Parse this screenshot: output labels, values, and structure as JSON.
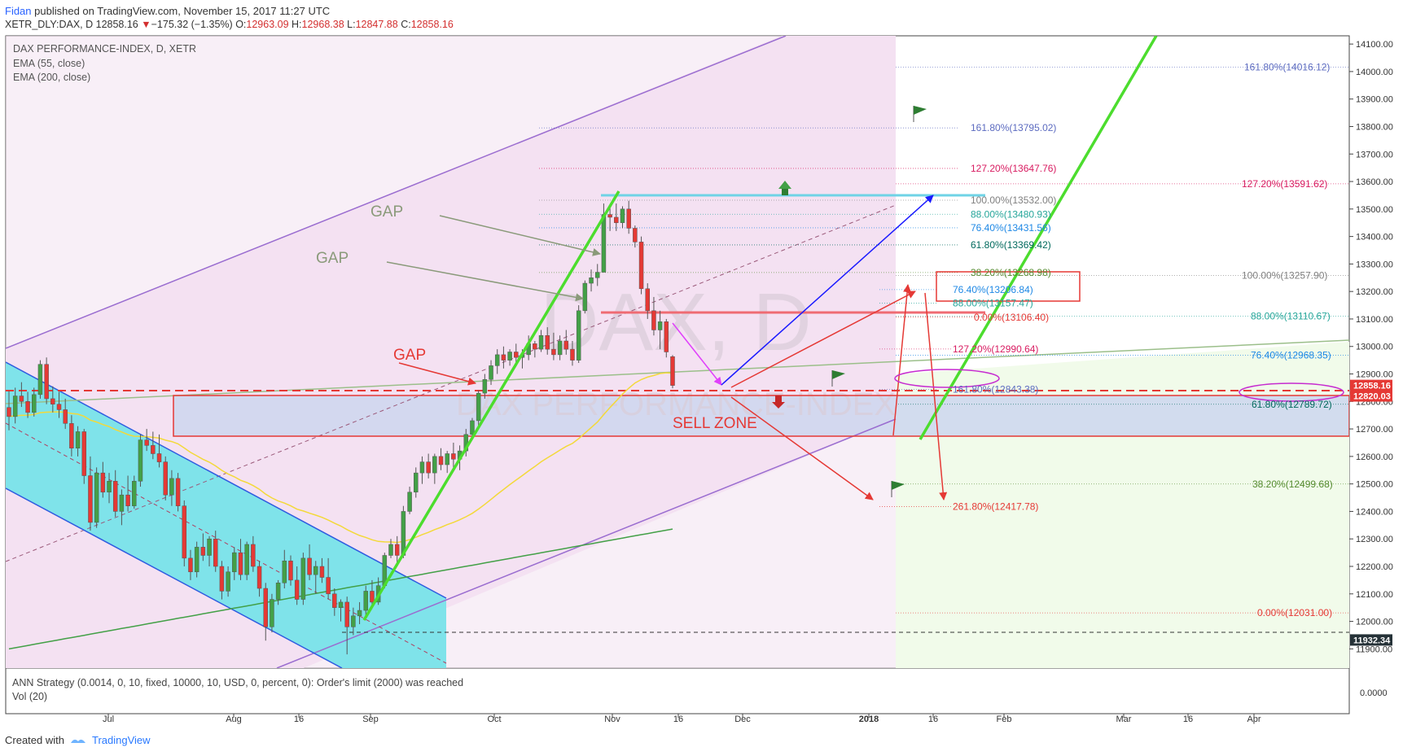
{
  "header": {
    "author": "Fidan",
    "published": "published on TradingView.com, November 15, 2017 11:27 UTC",
    "symbol": "XETR_DLY:DAX, D",
    "price": "12858.16",
    "change_arrow": "▼",
    "change": "−175.32 (−1.35%)",
    "o_label": "O:",
    "o": "12963.09",
    "h_label": "H:",
    "h": "12968.38",
    "l_label": "L:",
    "l": "12847.88",
    "c_label": "C:",
    "c": "12858.16"
  },
  "legend": {
    "title": "DAX PERFORMANCE-INDEX, D, XETR",
    "ema55": "EMA (55, close)",
    "ema200": "EMA (200, close)"
  },
  "watermark": {
    "symbol": "DAX, D",
    "name": "DAX PERFORMANCE-INDEX"
  },
  "indicator": {
    "strategy": "ANN Strategy (0.0014, 0, 10, fixed, 10000, 10, USD, 0, percent, 0): Order's limit (2000) was reached",
    "vol": "Vol (20)",
    "zero_tick": "0.0000"
  },
  "footer": {
    "created_with": "Created with",
    "brand": "TradingView"
  },
  "chart_data": {
    "type": "candlestick",
    "x_axis_labels": [
      "Jul",
      "Aug",
      "16",
      "Sep",
      "Oct",
      "Nov",
      "16",
      "Dec",
      "2018",
      "16",
      "Feb",
      "Mar",
      "16",
      "Apr"
    ],
    "y_ticks": [
      11900,
      12000,
      12100,
      12200,
      12300,
      12400,
      12500,
      12600,
      12700,
      12800,
      12900,
      13000,
      13100,
      13200,
      13300,
      13400,
      13500,
      13600,
      13700,
      13800,
      13900,
      14000,
      14100
    ],
    "y_tick_labels": [
      "11900.00",
      "12000.00",
      "12100.00",
      "12200.00",
      "12300.00",
      "12400.00",
      "12500.00",
      "12600.00",
      "12700.00",
      "12800.00",
      "12900.00",
      "13000.00",
      "13100.00",
      "13200.00",
      "13300.00",
      "13400.00",
      "13500.00",
      "13600.00",
      "13700.00",
      "13800.00",
      "13900.00",
      "14000.00",
      "14100.00"
    ],
    "ylim": [
      11830,
      14130
    ],
    "price_badges": [
      {
        "value": "12858.16",
        "color": "#e53935"
      },
      {
        "value": "12820.03",
        "color": "#e53935"
      },
      {
        "value": "11932.34",
        "color": "#263238"
      }
    ],
    "candles": [
      [
        12778,
        12838,
        12695,
        12745
      ],
      [
        12745,
        12850,
        12720,
        12820
      ],
      [
        12820,
        12870,
        12780,
        12800
      ],
      [
        12800,
        12835,
        12740,
        12760
      ],
      [
        12760,
        12850,
        12745,
        12825
      ],
      [
        12825,
        12950,
        12810,
        12935
      ],
      [
        12935,
        12960,
        12790,
        12810
      ],
      [
        12810,
        12855,
        12760,
        12790
      ],
      [
        12790,
        12835,
        12740,
        12770
      ],
      [
        12770,
        12810,
        12700,
        12720
      ],
      [
        12720,
        12750,
        12600,
        12630
      ],
      [
        12630,
        12710,
        12600,
        12690
      ],
      [
        12690,
        12700,
        12500,
        12530
      ],
      [
        12530,
        12600,
        12330,
        12360
      ],
      [
        12360,
        12560,
        12340,
        12540
      ],
      [
        12540,
        12580,
        12450,
        12470
      ],
      [
        12470,
        12540,
        12430,
        12510
      ],
      [
        12510,
        12550,
        12380,
        12400
      ],
      [
        12400,
        12480,
        12350,
        12460
      ],
      [
        12460,
        12530,
        12400,
        12420
      ],
      [
        12420,
        12530,
        12410,
        12510
      ],
      [
        12510,
        12680,
        12490,
        12660
      ],
      [
        12660,
        12700,
        12620,
        12640
      ],
      [
        12640,
        12690,
        12590,
        12610
      ],
      [
        12610,
        12680,
        12560,
        12580
      ],
      [
        12580,
        12600,
        12440,
        12460
      ],
      [
        12460,
        12550,
        12420,
        12520
      ],
      [
        12520,
        12540,
        12400,
        12420
      ],
      [
        12420,
        12440,
        12200,
        12230
      ],
      [
        12230,
        12260,
        12150,
        12180
      ],
      [
        12180,
        12290,
        12160,
        12270
      ],
      [
        12270,
        12320,
        12220,
        12240
      ],
      [
        12240,
        12310,
        12200,
        12300
      ],
      [
        12300,
        12330,
        12180,
        12200
      ],
      [
        12200,
        12220,
        12080,
        12110
      ],
      [
        12110,
        12200,
        12090,
        12180
      ],
      [
        12180,
        12270,
        12150,
        12250
      ],
      [
        12250,
        12300,
        12150,
        12170
      ],
      [
        12170,
        12290,
        12150,
        12280
      ],
      [
        12280,
        12310,
        12180,
        12200
      ],
      [
        12200,
        12220,
        12090,
        12120
      ],
      [
        12120,
        12140,
        11930,
        11980
      ],
      [
        11980,
        12100,
        11960,
        12080
      ],
      [
        12080,
        12150,
        12060,
        12140
      ],
      [
        12140,
        12260,
        12120,
        12220
      ],
      [
        12220,
        12240,
        12130,
        12150
      ],
      [
        12150,
        12200,
        12060,
        12080
      ],
      [
        12080,
        12250,
        12060,
        12230
      ],
      [
        12230,
        12280,
        12150,
        12170
      ],
      [
        12170,
        12220,
        12100,
        12200
      ],
      [
        12200,
        12230,
        12140,
        12160
      ],
      [
        12160,
        12230,
        12080,
        12100
      ],
      [
        12100,
        12120,
        12020,
        12050
      ],
      [
        12050,
        12080,
        12000,
        12070
      ],
      [
        12070,
        12090,
        11880,
        11980
      ],
      [
        11980,
        12050,
        11950,
        12020
      ],
      [
        12020,
        12070,
        11990,
        12040
      ],
      [
        12040,
        12130,
        12020,
        12110
      ],
      [
        12110,
        12150,
        12050,
        12070
      ],
      [
        12070,
        12160,
        12060,
        12130
      ],
      [
        12130,
        12250,
        12120,
        12240
      ],
      [
        12240,
        12300,
        12230,
        12280
      ],
      [
        12280,
        12310,
        12200,
        12240
      ],
      [
        12240,
        12420,
        12230,
        12400
      ],
      [
        12400,
        12490,
        12390,
        12470
      ],
      [
        12470,
        12560,
        12450,
        12540
      ],
      [
        12540,
        12600,
        12500,
        12580
      ],
      [
        12580,
        12610,
        12520,
        12540
      ],
      [
        12540,
        12610,
        12500,
        12600
      ],
      [
        12600,
        12630,
        12550,
        12570
      ],
      [
        12570,
        12620,
        12540,
        12610
      ],
      [
        12610,
        12650,
        12560,
        12590
      ],
      [
        12590,
        12640,
        12550,
        12620
      ],
      [
        12620,
        12700,
        12600,
        12680
      ],
      [
        12680,
        12740,
        12660,
        12730
      ],
      [
        12730,
        12840,
        12710,
        12830
      ],
      [
        12830,
        12900,
        12810,
        12880
      ],
      [
        12880,
        12950,
        12860,
        12930
      ],
      [
        12930,
        12990,
        12900,
        12970
      ],
      [
        12970,
        13000,
        12920,
        12950
      ],
      [
        12950,
        12990,
        12930,
        12980
      ],
      [
        12980,
        13010,
        12940,
        12960
      ],
      [
        12960,
        12990,
        12920,
        12970
      ],
      [
        12970,
        13040,
        12950,
        13010
      ],
      [
        13010,
        13020,
        12960,
        12990
      ],
      [
        12990,
        13060,
        12980,
        13040
      ],
      [
        13040,
        13070,
        12970,
        12990
      ],
      [
        12990,
        13050,
        12950,
        12970
      ],
      [
        12970,
        13040,
        12950,
        13020
      ],
      [
        13020,
        13060,
        12970,
        12990
      ],
      [
        12990,
        13020,
        12930,
        12950
      ],
      [
        12950,
        13150,
        12940,
        13130
      ],
      [
        13130,
        13240,
        13120,
        13230
      ],
      [
        13230,
        13280,
        13200,
        13250
      ],
      [
        13250,
        13300,
        13220,
        13270
      ],
      [
        13270,
        13520,
        13270,
        13480
      ],
      [
        13480,
        13510,
        13420,
        13470
      ],
      [
        13470,
        13520,
        13420,
        13450
      ],
      [
        13450,
        13510,
        13430,
        13500
      ],
      [
        13500,
        13530,
        13410,
        13430
      ],
      [
        13430,
        13440,
        13360,
        13380
      ],
      [
        13380,
        13400,
        13190,
        13210
      ],
      [
        13210,
        13230,
        13100,
        13130
      ],
      [
        13130,
        13180,
        13040,
        13060
      ],
      [
        13060,
        13130,
        12990,
        13090
      ],
      [
        13090,
        13100,
        12960,
        12980
      ],
      [
        12963.09,
        12968.38,
        12847.88,
        12858.16
      ]
    ],
    "fib_labels": [
      {
        "label": "161.80%(14016.12)",
        "value": 14016.12,
        "color": "#5c6bc0"
      },
      {
        "label": "161.80%(13795.02)",
        "value": 13795.02,
        "color": "#5c6bc0"
      },
      {
        "label": "127.20%(13647.76)",
        "value": 13647.76,
        "color": "#d81b60"
      },
      {
        "label": "127.20%(13591.62)",
        "value": 13591.62,
        "color": "#d81b60"
      },
      {
        "label": "100.00%(13532.00)",
        "value": 13532.0,
        "color": "#808080"
      },
      {
        "label": "88.00%(13480.93)",
        "value": 13480.93,
        "color": "#26a69a"
      },
      {
        "label": "76.40%(13431.56)",
        "value": 13431.56,
        "color": "#1e88e5"
      },
      {
        "label": "61.80%(13369.42)",
        "value": 13369.42,
        "color": "#00695c"
      },
      {
        "label": "38.20%(13268.98)",
        "value": 13268.98,
        "color": "#558b2f"
      },
      {
        "label": "100.00%(13257.90)",
        "value": 13257.9,
        "color": "#808080"
      },
      {
        "label": "76.40%(13206.84)",
        "value": 13206.84,
        "color": "#1e88e5"
      },
      {
        "label": "88.00%(13157.47)",
        "value": 13157.47,
        "color": "#26a69a"
      },
      {
        "label": "0.00%(13106.40)",
        "value": 13106.4,
        "color": "#e53935"
      },
      {
        "label": "88.00%(13110.67)",
        "value": 13110.67,
        "color": "#26a69a"
      },
      {
        "label": "127.20%(12990.64)",
        "value": 12990.64,
        "color": "#d81b60"
      },
      {
        "label": "76.40%(12968.35)",
        "value": 12968.35,
        "color": "#1e88e5"
      },
      {
        "label": "161.80%(12843.38)",
        "value": 12843.38,
        "color": "#5c6bc0"
      },
      {
        "label": "61.80%(12789.72)",
        "value": 12789.72,
        "color": "#00695c"
      },
      {
        "label": "38.20%(12499.68)",
        "value": 12499.68,
        "color": "#558b2f"
      },
      {
        "label": "261.80%(12417.78)",
        "value": 12417.78,
        "color": "#e53935"
      },
      {
        "label": "0.00%(12031.00)",
        "value": 12031.0,
        "color": "#e53935"
      }
    ],
    "annotations": [
      {
        "text": "GAP",
        "color": "#8a9a7a"
      },
      {
        "text": "GAP",
        "color": "#8a9a7a"
      },
      {
        "text": "GAP",
        "color": "#e53935"
      },
      {
        "text": "SELL ZONE",
        "color": "#e53935"
      }
    ],
    "sell_zone": [
      12660,
      12820
    ],
    "colors": {
      "up": "#43a047",
      "down": "#e53935",
      "ema55": "#f3d93a",
      "ema200": "#43a047"
    }
  }
}
